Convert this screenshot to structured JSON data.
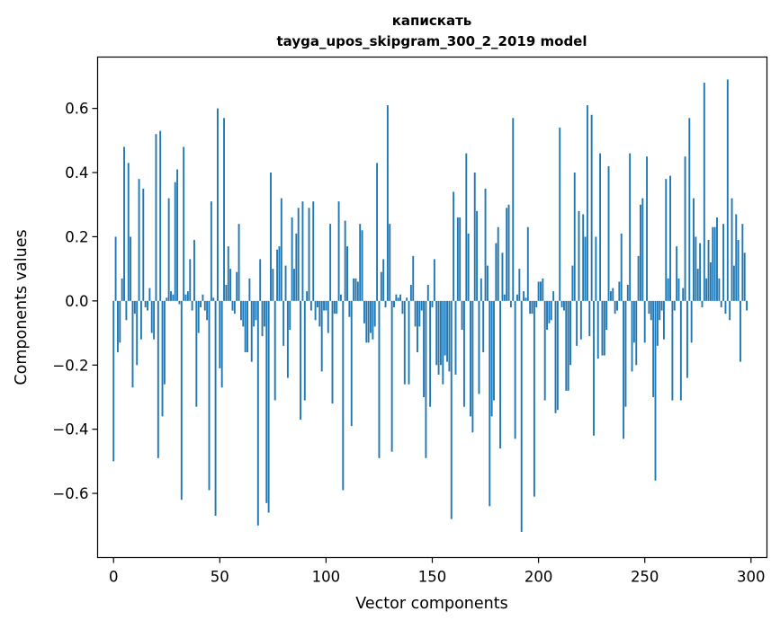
{
  "chart_data": {
    "type": "bar",
    "title_line1": "капискать",
    "title_line2": "tayga_upos_skipgram_300_2_2019 model",
    "xlabel": "Vector components",
    "ylabel": "Components values",
    "xlim": [
      -7.5,
      307.5
    ],
    "ylim": [
      -0.8,
      0.76
    ],
    "xticks": [
      0,
      50,
      100,
      150,
      200,
      250,
      300
    ],
    "yticks": [
      -0.6,
      -0.4,
      -0.2,
      0.0,
      0.2,
      0.4,
      0.6
    ],
    "ytick_labels": [
      "−0.6",
      "−0.4",
      "−0.2",
      "0.0",
      "0.2",
      "0.4",
      "0.6"
    ],
    "bar_color": "#1f77b4",
    "bar_width": 0.8,
    "values": [
      -0.5,
      0.2,
      -0.16,
      -0.13,
      0.07,
      0.48,
      -0.06,
      0.43,
      0.2,
      -0.27,
      -0.04,
      -0.2,
      0.38,
      -0.12,
      0.35,
      -0.02,
      -0.03,
      0.04,
      -0.1,
      -0.12,
      0.52,
      -0.49,
      0.53,
      -0.36,
      -0.26,
      0.01,
      0.32,
      0.03,
      0.02,
      0.37,
      0.41,
      -0.01,
      -0.62,
      0.48,
      0.02,
      0.03,
      0.13,
      -0.03,
      0.19,
      -0.33,
      -0.1,
      -0.02,
      0.02,
      -0.03,
      -0.06,
      -0.59,
      0.31,
      0.01,
      -0.67,
      0.6,
      -0.21,
      -0.27,
      0.57,
      0.05,
      0.17,
      0.1,
      -0.03,
      -0.04,
      0.09,
      0.24,
      -0.06,
      -0.08,
      -0.16,
      -0.16,
      0.07,
      -0.19,
      -0.08,
      -0.06,
      -0.7,
      0.13,
      -0.11,
      -0.08,
      -0.63,
      -0.66,
      0.4,
      0.1,
      -0.31,
      0.16,
      0.17,
      0.32,
      -0.14,
      0.11,
      -0.24,
      -0.09,
      0.26,
      0.1,
      0.21,
      0.29,
      -0.37,
      0.31,
      -0.31,
      0.03,
      0.29,
      -0.03,
      0.31,
      -0.06,
      -0.02,
      -0.08,
      -0.22,
      -0.03,
      -0.03,
      -0.1,
      0.24,
      -0.32,
      -0.04,
      -0.04,
      0.31,
      0.02,
      -0.59,
      0.25,
      0.17,
      -0.05,
      -0.39,
      0.07,
      0.07,
      0.06,
      0.24,
      0.22,
      -0.07,
      -0.13,
      -0.13,
      -0.1,
      -0.12,
      -0.08,
      0.43,
      -0.49,
      0.09,
      0.13,
      -0.02,
      0.61,
      0.24,
      -0.47,
      -0.02,
      0.02,
      0.01,
      0.02,
      -0.04,
      -0.26,
      0.01,
      -0.26,
      0.05,
      0.14,
      -0.08,
      -0.16,
      -0.08,
      -0.03,
      -0.3,
      -0.49,
      0.05,
      -0.33,
      -0.02,
      0.13,
      -0.2,
      -0.23,
      -0.2,
      -0.26,
      -0.17,
      -0.19,
      -0.22,
      -0.68,
      0.34,
      -0.23,
      0.26,
      0.26,
      -0.09,
      -0.33,
      0.46,
      0.21,
      -0.36,
      -0.41,
      0.4,
      0.28,
      -0.29,
      0.07,
      -0.16,
      0.35,
      0.11,
      -0.64,
      -0.36,
      -0.31,
      0.18,
      0.23,
      -0.46,
      0.15,
      0.02,
      0.29,
      0.3,
      -0.02,
      0.57,
      -0.43,
      0.02,
      0.1,
      -0.72,
      0.03,
      0.01,
      0.23,
      -0.04,
      -0.04,
      -0.61,
      -0.02,
      0.06,
      0.06,
      0.07,
      -0.31,
      -0.09,
      -0.07,
      -0.06,
      0.03,
      -0.35,
      -0.34,
      0.54,
      -0.02,
      -0.03,
      -0.28,
      -0.28,
      -0.2,
      0.11,
      0.4,
      -0.14,
      0.28,
      -0.12,
      0.27,
      0.2,
      0.61,
      -0.11,
      0.58,
      -0.42,
      0.2,
      -0.18,
      0.46,
      -0.17,
      -0.17,
      -0.09,
      0.42,
      0.03,
      0.04,
      -0.04,
      -0.03,
      0.06,
      0.21,
      -0.43,
      -0.33,
      0.05,
      0.46,
      -0.22,
      -0.13,
      -0.2,
      0.14,
      0.3,
      0.32,
      -0.13,
      0.45,
      -0.04,
      -0.06,
      -0.3,
      -0.56,
      -0.14,
      -0.06,
      -0.03,
      -0.12,
      0.38,
      0.07,
      0.39,
      -0.31,
      -0.03,
      0.17,
      0.07,
      -0.31,
      0.04,
      0.45,
      -0.24,
      0.57,
      -0.13,
      0.32,
      0.2,
      0.1,
      0.18,
      -0.02,
      0.68,
      0.07,
      0.19,
      0.12,
      0.23,
      0.23,
      0.26,
      0.07,
      -0.02,
      0.24,
      -0.04,
      0.69,
      -0.06,
      0.32,
      0.11,
      0.27,
      0.19,
      -0.19,
      0.24,
      0.15,
      -0.03
    ]
  }
}
